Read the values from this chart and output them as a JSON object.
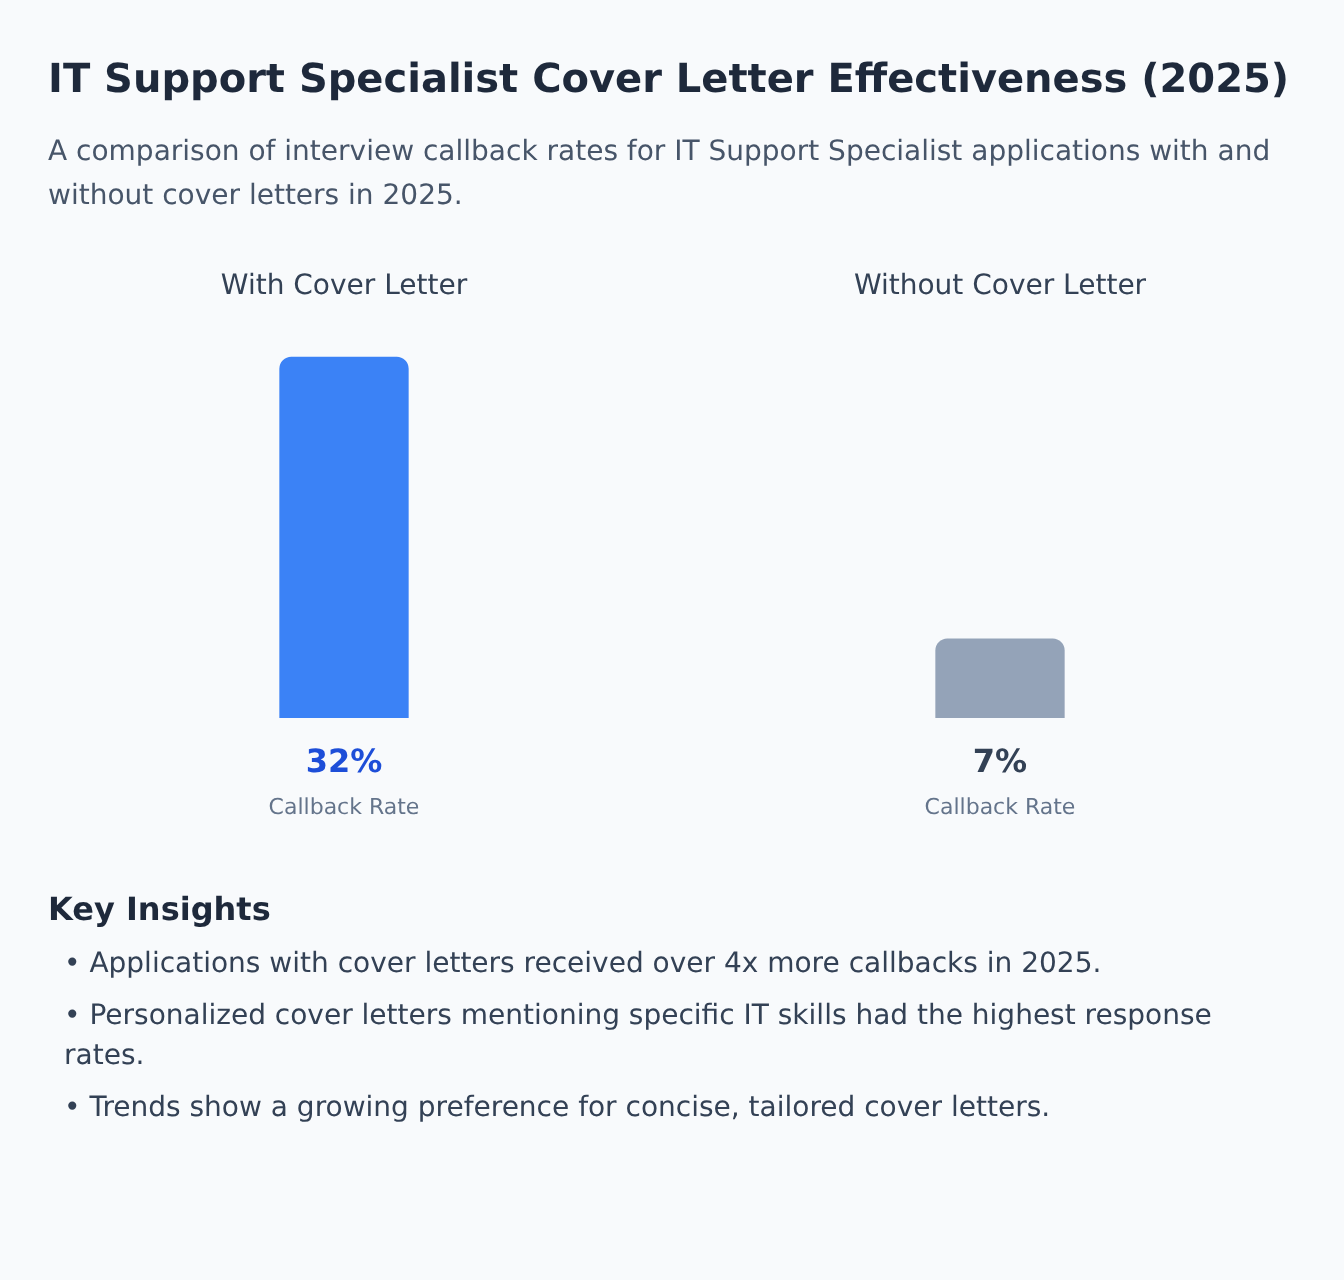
{
  "chart_data": {
    "type": "bar",
    "title": "IT Support Specialist Cover Letter Effectiveness (2025)",
    "subtitle": "A comparison of interview callback rates for IT Support Specialist applications with and without cover letters in 2025.",
    "categories": [
      "With Cover Letter",
      "Without Cover Letter"
    ],
    "values": [
      32,
      7
    ],
    "colors": [
      "#3b82f6",
      "#94a3b8"
    ],
    "value_labels": [
      "32%",
      "7%"
    ],
    "annotations": [
      "Callback Rate",
      "Callback Rate",
      "Key Insights",
      "• Applications with cover letters received over 4x more callbacks in 2025.",
      "• Personalized cover letters mentioning specific IT skills had the highest response rates.",
      "• Trends show a growing preference for concise, tailored cover letters."
    ],
    "grid": false,
    "legend": false
  }
}
